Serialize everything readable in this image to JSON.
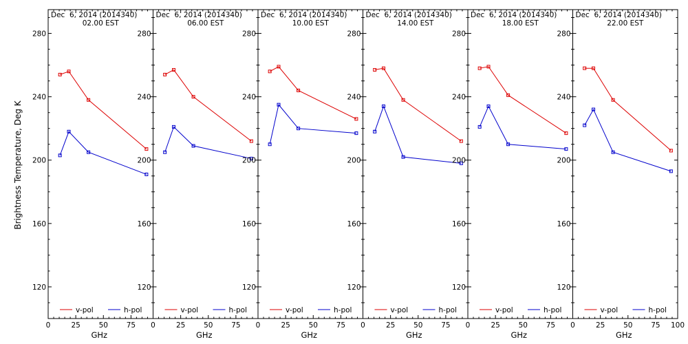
{
  "chart_data": {
    "type": "line",
    "ylabel": "Brightness Temperature, Deg K",
    "xlabel": "GHz",
    "xlim": [
      0,
      95
    ],
    "ylim": [
      100,
      295
    ],
    "yticks": [
      120,
      160,
      200,
      240,
      280
    ],
    "xticks": [
      0,
      25,
      50,
      75
    ],
    "xtick_labels": [
      "0",
      "25",
      "50",
      "75"
    ],
    "last_xtick": "100",
    "x": [
      10.7,
      18.7,
      36.5,
      89
    ],
    "colors": {
      "v-pol": "#dd0000",
      "h-pol": "#0000cc"
    },
    "legend": [
      "v-pol",
      "h-pol"
    ],
    "panels": [
      {
        "date": "Dec  6, 2014 (2014340)",
        "time": "02.00 EST",
        "series": [
          {
            "name": "v-pol",
            "values": [
              254,
              256,
              238,
              207
            ]
          },
          {
            "name": "h-pol",
            "values": [
              203,
              218,
              205,
              191
            ]
          }
        ]
      },
      {
        "date": "Dec  6, 2014 (2014340)",
        "time": "06.00 EST",
        "series": [
          {
            "name": "v-pol",
            "values": [
              254,
              257,
              240,
              212
            ]
          },
          {
            "name": "h-pol",
            "values": [
              205,
              221,
              209,
              201
            ]
          }
        ]
      },
      {
        "date": "Dec  6, 2014 (2014340)",
        "time": "10.00 EST",
        "series": [
          {
            "name": "v-pol",
            "values": [
              256,
              259,
              244,
              226
            ]
          },
          {
            "name": "h-pol",
            "values": [
              210,
              235,
              220,
              217
            ]
          }
        ]
      },
      {
        "date": "Dec  6, 2014 (2014340)",
        "time": "14.00 EST",
        "series": [
          {
            "name": "v-pol",
            "values": [
              257,
              258,
              238,
              212
            ]
          },
          {
            "name": "h-pol",
            "values": [
              218,
              234,
              202,
              198
            ]
          }
        ]
      },
      {
        "date": "Dec  6, 2014 (2014340)",
        "time": "18.00 EST",
        "series": [
          {
            "name": "v-pol",
            "values": [
              258,
              259,
              241,
              217
            ]
          },
          {
            "name": "h-pol",
            "values": [
              221,
              234,
              210,
              207
            ]
          }
        ]
      },
      {
        "date": "Dec  6, 2014 (2014340)",
        "time": "22.00 EST",
        "series": [
          {
            "name": "v-pol",
            "values": [
              258,
              258,
              238,
              206
            ]
          },
          {
            "name": "h-pol",
            "values": [
              222,
              232,
              205,
              193
            ]
          }
        ]
      }
    ]
  }
}
